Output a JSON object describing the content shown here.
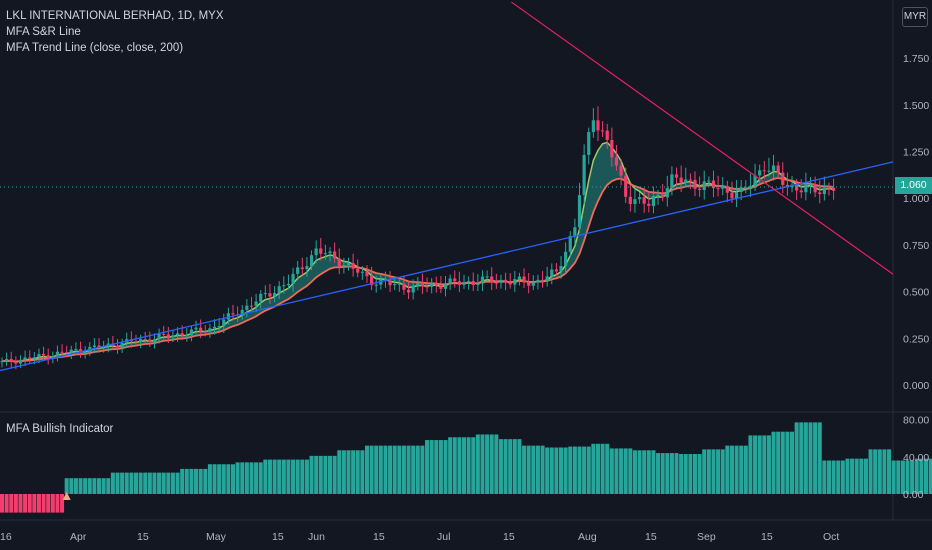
{
  "header": {
    "symbol_title": "LKL INTERNATIONAL BERHAD, 1D, MYX",
    "indicator_1": "MFA S&R Line",
    "indicator_2": "MFA Trend Line (close, close, 200)",
    "currency": "MYR",
    "last_price": "1.060"
  },
  "sub_pane": {
    "title": "MFA Bullish Indicator"
  },
  "colors": {
    "background": "#131722",
    "bull": "#26a69a",
    "bear": "#f23d6d",
    "trend_line": "#2962ff",
    "resistance_line": "#e91e63",
    "ribbon_fast": "#9ccc65",
    "ribbon_slow": "#ef6c57"
  },
  "chart_data": [
    {
      "type": "candlestick",
      "x_ticks": [
        "16",
        "Apr",
        "15",
        "May",
        "15",
        "Jun",
        "15",
        "Jul",
        "15",
        "Aug",
        "15",
        "Sep",
        "15",
        "Oct"
      ],
      "y_ticks": [
        "0.000",
        "0.250",
        "0.500",
        "0.750",
        "1.000",
        "1.250",
        "1.500",
        "1.750"
      ],
      "ylim": [
        -0.08,
        2.05
      ],
      "last_value": 1.06,
      "trend_line": {
        "from": [
          0,
          0.08
        ],
        "to": [
          180,
          1.12
        ]
      },
      "resistance_line": {
        "from": [
          125,
          1.79
        ],
        "to": [
          180,
          0.82
        ]
      }
    },
    {
      "type": "bar",
      "title": "MFA Bullish Indicator",
      "y_ticks": [
        "0.00",
        "40.00",
        "80.00"
      ],
      "ylim": [
        -20,
        80
      ],
      "values": [
        -20,
        -20,
        -20,
        -20,
        -20,
        -20,
        -20,
        -20,
        -20,
        -20,
        -20,
        -20,
        -20,
        -20,
        17,
        17,
        17,
        17,
        17,
        17,
        17,
        17,
        17,
        17,
        23,
        23,
        23,
        23,
        23,
        23,
        23,
        23,
        23,
        23,
        23,
        23,
        23,
        23,
        23,
        27,
        27,
        27,
        27,
        27,
        27,
        32,
        32,
        32,
        32,
        32,
        32,
        34,
        34,
        34,
        34,
        34,
        34,
        37,
        37,
        37,
        37,
        37,
        37,
        37,
        37,
        37,
        37,
        41,
        41,
        41,
        41,
        41,
        41,
        47,
        47,
        47,
        47,
        47,
        47,
        52,
        52,
        52,
        52,
        52,
        52,
        52,
        52,
        52,
        52,
        52,
        52,
        52,
        58,
        58,
        58,
        58,
        58,
        61,
        61,
        61,
        61,
        61,
        61,
        64,
        64,
        64,
        64,
        64,
        59,
        59,
        59,
        59,
        59,
        52,
        52,
        52,
        52,
        52,
        50,
        50,
        50,
        50,
        50,
        51,
        51,
        51,
        51,
        51,
        54,
        54,
        54,
        54,
        49,
        49,
        49,
        49,
        49,
        47,
        47,
        47,
        47,
        47,
        44,
        44,
        44,
        44,
        44,
        43,
        43,
        43,
        43,
        43,
        48,
        48,
        48,
        48,
        48,
        52,
        52,
        52,
        52,
        52,
        63,
        63,
        63,
        63,
        63,
        67,
        67,
        67,
        67,
        67,
        77,
        77,
        77,
        77,
        77,
        77,
        36,
        36,
        36,
        36,
        36,
        38,
        38,
        38,
        38,
        38,
        48,
        48,
        48,
        48,
        48,
        36,
        36,
        36,
        36,
        36,
        38,
        38,
        38,
        38,
        38,
        39,
        39,
        39,
        39,
        39,
        39,
        39,
        39,
        39,
        39,
        38,
        38,
        38,
        38,
        38,
        38,
        38,
        38,
        38,
        38,
        39,
        39,
        39,
        39,
        39,
        39,
        39,
        39,
        39,
        39,
        40,
        40,
        40,
        40,
        40,
        40,
        40,
        40,
        40,
        40
      ]
    }
  ]
}
